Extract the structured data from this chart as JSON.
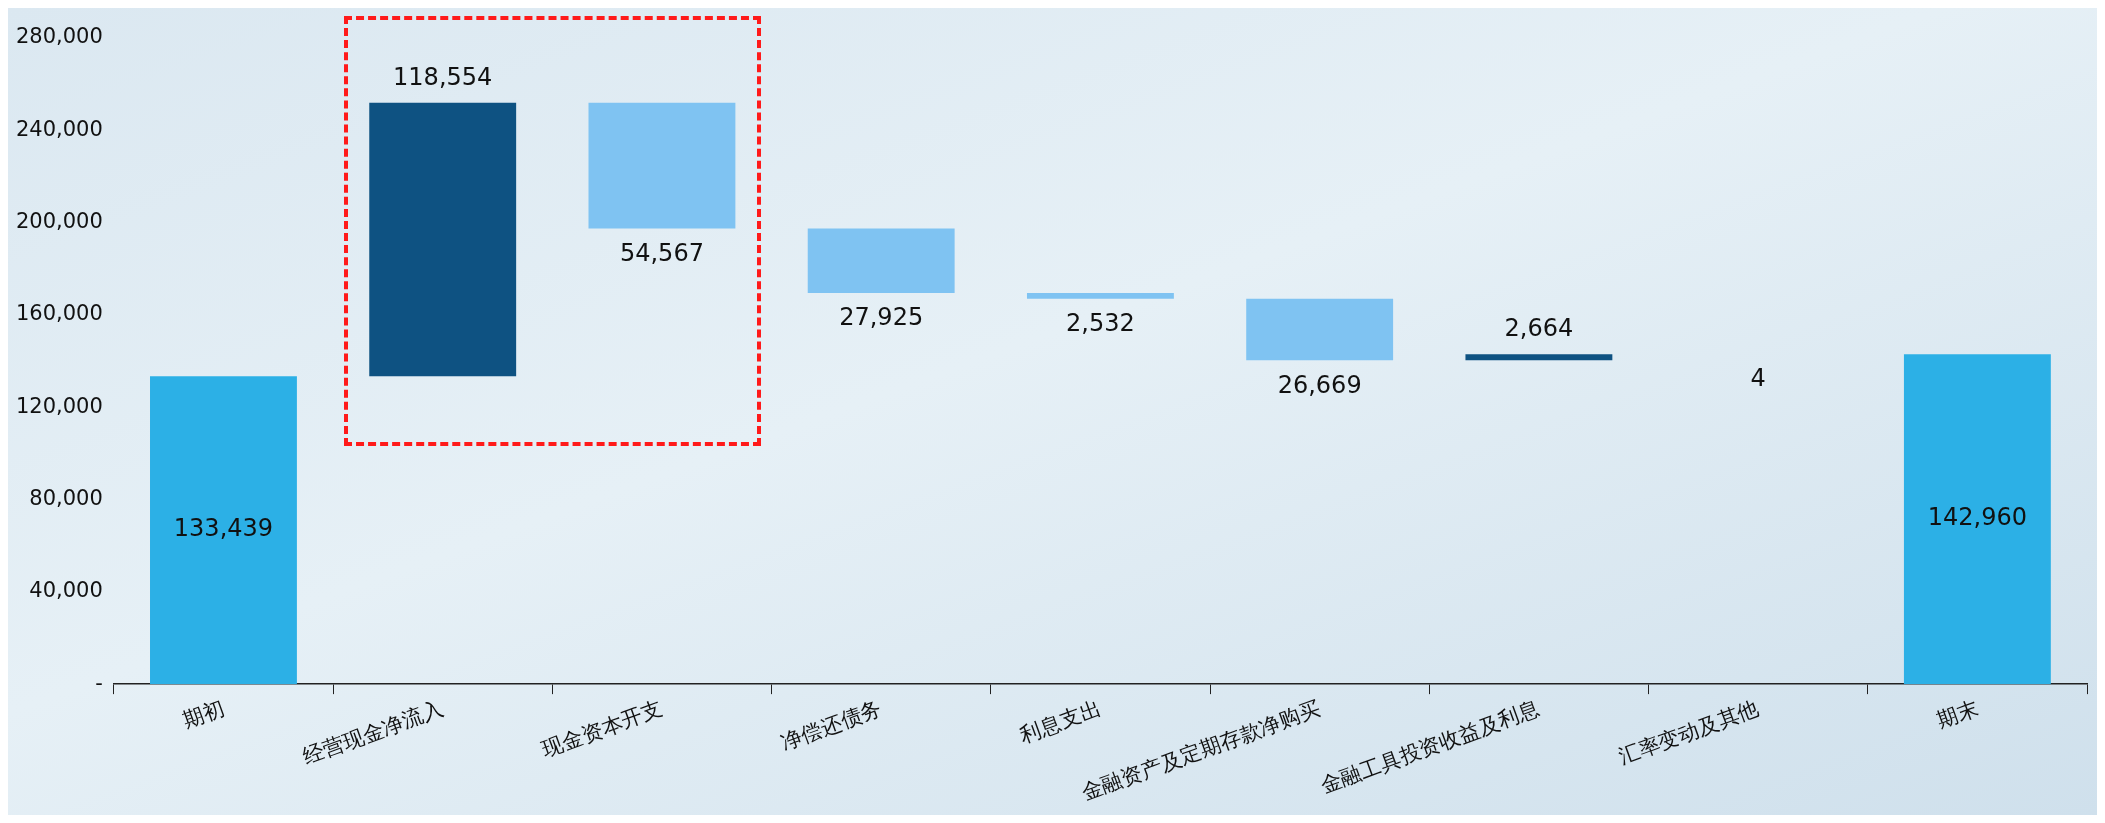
{
  "chart_data": {
    "type": "bar",
    "categories": [
      "期初",
      "经营现金净流入",
      "现金资本开支",
      "净偿还债务",
      "利息支出",
      "金融资产及定期存款净购买",
      "金融工具投资收益及利息",
      "汇率变动及其他",
      "期末"
    ],
    "values": [
      133439,
      118554,
      54567,
      27925,
      2532,
      26669,
      2664,
      4,
      142960
    ],
    "base": [
      0,
      133439,
      197426,
      169501,
      166969,
      140300,
      140300,
      142960,
      0
    ],
    "colors": [
      "#2cb0e6",
      "#0e5282",
      "#7fc3f2",
      "#7fc3f2",
      "#7fc3f2",
      "#7fc3f2",
      "#0e5282",
      "#7fc3f2",
      "#2cb0e6"
    ],
    "ylim": [
      0,
      280000
    ],
    "yticks": [
      {
        "value": 0,
        "label": "-"
      },
      {
        "value": 40000,
        "label": "40,000"
      },
      {
        "value": 80000,
        "label": "80,000"
      },
      {
        "value": 120000,
        "label": "120,000"
      },
      {
        "value": 160000,
        "label": "160,000"
      },
      {
        "value": 200000,
        "label": "200,000"
      },
      {
        "value": 240000,
        "label": "240,000"
      },
      {
        "value": 280000,
        "label": "280,000"
      }
    ],
    "value_labels": [
      "133,439",
      "118,554",
      "54,567",
      "27,925",
      "2,532",
      "26,669",
      "2,664",
      "4",
      "142,960"
    ],
    "grid": false,
    "legend": false
  }
}
